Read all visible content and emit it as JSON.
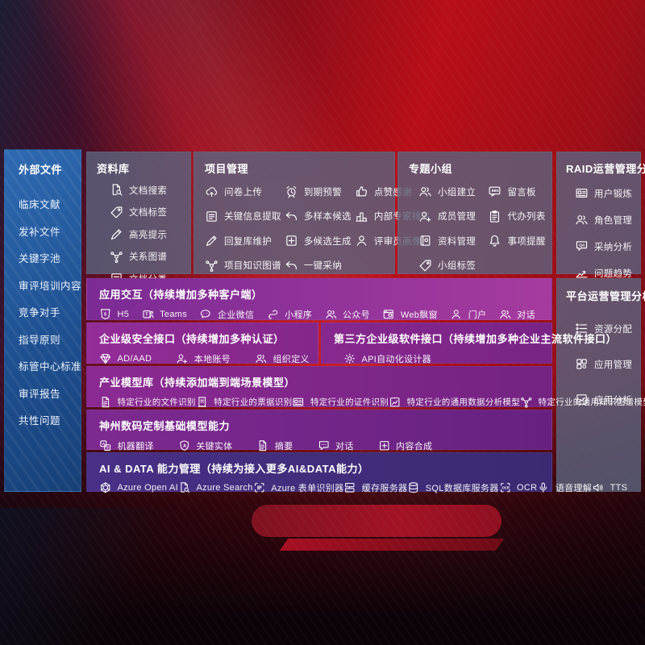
{
  "colors": {
    "bg-red": "#b80e18",
    "sidebar-blue": "#2e6ab2",
    "panel-gray": "#5c637e",
    "row-purple": "#8b2a93",
    "row-indigo": "#453083"
  },
  "sidebar": {
    "title": "外部文件",
    "items": [
      {
        "label": "临床文献"
      },
      {
        "label": "发补文件"
      },
      {
        "label": "关键字池"
      },
      {
        "label": "审评培训内容"
      },
      {
        "label": "竞争对手"
      },
      {
        "label": "指导原则"
      },
      {
        "label": "标管中心标准"
      },
      {
        "label": "审评报告"
      },
      {
        "label": "共性问题"
      }
    ]
  },
  "panels": {
    "library": {
      "title": "资料库",
      "items": [
        {
          "label": "文档搜索",
          "icon": "doc-search-icon"
        },
        {
          "label": "文档标签",
          "icon": "tag-icon"
        },
        {
          "label": "高亮提示",
          "icon": "highlighter-icon"
        },
        {
          "label": "关系图谱",
          "icon": "relation-graph-icon"
        },
        {
          "label": "文档分类",
          "icon": "doc-category-icon"
        }
      ]
    },
    "project": {
      "title": "项目管理",
      "items": [
        {
          "label": "问卷上传",
          "icon": "cloud-upload-icon"
        },
        {
          "label": "到期预警",
          "icon": "alarm-icon"
        },
        {
          "label": "点赞感谢",
          "icon": "thumbs-up-icon"
        },
        {
          "label": "关键信息提取",
          "icon": "info-extract-icon"
        },
        {
          "label": "多样本候选",
          "icon": "reply-icon"
        },
        {
          "label": "内部专家排名",
          "icon": "ranking-icon"
        },
        {
          "label": "回复库维护",
          "icon": "pencil-icon"
        },
        {
          "label": "多候选生成",
          "icon": "multi-generate-icon"
        },
        {
          "label": "评审员画像",
          "icon": "reviewer-icon"
        },
        {
          "label": "项目知识图谱",
          "icon": "knowledge-graph-icon"
        },
        {
          "label": "一键采纳",
          "icon": "adopt-icon"
        }
      ]
    },
    "group": {
      "title": "专题小组",
      "items": [
        {
          "label": "小组建立",
          "icon": "team-create-icon"
        },
        {
          "label": "留言板",
          "icon": "bbs-icon"
        },
        {
          "label": "成员管理",
          "icon": "member-manage-icon"
        },
        {
          "label": "代办列表",
          "icon": "todo-list-icon"
        },
        {
          "label": "资料管理",
          "icon": "material-manage-icon"
        },
        {
          "label": "事项提醒",
          "icon": "reminder-bell-icon"
        },
        {
          "label": "小组标签",
          "icon": "team-tag-icon"
        }
      ]
    },
    "raid": {
      "title": "RAID运营管理分析",
      "items": [
        {
          "label": "用户锻炼",
          "icon": "user-card-icon"
        },
        {
          "label": "角色管理",
          "icon": "role-manage-icon"
        },
        {
          "label": "采纳分析",
          "icon": "adoption-analysis-icon"
        },
        {
          "label": "问题趋势",
          "icon": "issue-trend-icon"
        }
      ]
    },
    "platform": {
      "title": "平台运营管理分析",
      "items": [
        {
          "label": "资源分配",
          "icon": "resource-allocation-icon"
        },
        {
          "label": "应用管理",
          "icon": "app-manage-icon"
        },
        {
          "label": "应用分析",
          "icon": "app-analysis-icon"
        }
      ]
    },
    "interaction": {
      "title": "应用交互（持续增加多种客户端）",
      "items": [
        {
          "label": "H5",
          "icon": "h5-icon"
        },
        {
          "label": "Teams",
          "icon": "teams-icon"
        },
        {
          "label": "企业微信",
          "icon": "wechat-work-icon"
        },
        {
          "label": "小程序",
          "icon": "miniprogram-icon"
        },
        {
          "label": "公众号",
          "icon": "official-account-icon"
        },
        {
          "label": "Web飘窗",
          "icon": "web-window-icon"
        },
        {
          "label": "门户",
          "icon": "portal-icon"
        },
        {
          "label": "对话",
          "icon": "dialog-icon"
        }
      ]
    },
    "security": {
      "title": "企业级安全接口（持续增加多种认证）",
      "items": [
        {
          "label": "AD/AAD",
          "icon": "ad-aad-icon"
        },
        {
          "label": "本地账号",
          "icon": "local-account-icon"
        },
        {
          "label": "组织定义",
          "icon": "org-define-icon"
        }
      ]
    },
    "thirdparty": {
      "title": "第三方企业级软件接口（持续增加多种企业主流软件接口）",
      "items": [
        {
          "label": "API自动化设计器",
          "icon": "api-designer-icon"
        }
      ]
    },
    "industry": {
      "title": "产业模型库（持续添加端到端场景模型）",
      "items": [
        {
          "label": "特定行业的文件识别",
          "icon": "file-recognition-icon"
        },
        {
          "label": "特定行业的票据识别",
          "icon": "receipt-recognition-icon"
        },
        {
          "label": "特定行业的证件识别",
          "icon": "certificate-recognition-icon"
        },
        {
          "label": "特定行业的通用数据分析模型",
          "icon": "data-analysis-model-icon"
        },
        {
          "label": "特定行业的通用知识图谱模型",
          "icon": "knowledge-graph-model-icon"
        }
      ]
    },
    "basemodel": {
      "title": "神州数码定制基础模型能力",
      "items": [
        {
          "label": "机器翻译",
          "icon": "translate-icon"
        },
        {
          "label": "关键实体",
          "icon": "key-entity-icon"
        },
        {
          "label": "摘要",
          "icon": "summary-icon"
        },
        {
          "label": "对话",
          "icon": "chat-icon"
        },
        {
          "label": "内容合成",
          "icon": "content-compose-icon"
        }
      ]
    },
    "aidata": {
      "title": "AI & DATA 能力管理（持续为接入更多AI&DATA能力）",
      "items": [
        {
          "label": "Azure Open AI",
          "icon": "openai-icon"
        },
        {
          "label": "Azure Search",
          "icon": "azure-search-icon"
        },
        {
          "label": "Azure 表单识别器",
          "icon": "form-recognizer-icon"
        },
        {
          "label": "缓存服务器",
          "icon": "cache-server-icon"
        },
        {
          "label": "SQL数据库服务器",
          "icon": "sql-server-icon"
        },
        {
          "label": "OCR",
          "icon": "ocr-icon"
        },
        {
          "label": "语音理解",
          "icon": "speech-understanding-icon"
        },
        {
          "label": "TTS",
          "icon": "tts-icon"
        }
      ]
    }
  }
}
